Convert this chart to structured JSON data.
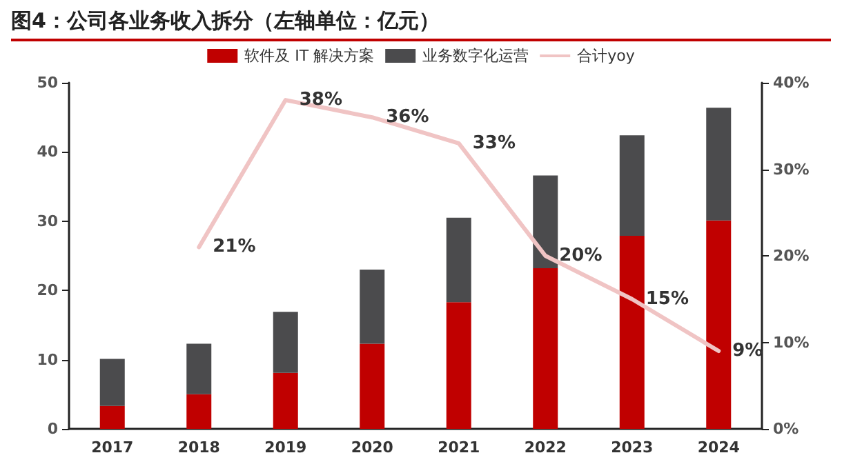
{
  "chart_data": {
    "type": "bar",
    "title": "图4：公司各业务收入拆分（左轴单位：亿元）",
    "categories": [
      "2017",
      "2018",
      "2019",
      "2020",
      "2021",
      "2022",
      "2023",
      "2024"
    ],
    "stacked": true,
    "series": [
      {
        "name": "软件及 IT 解决方案",
        "color": "#c00000",
        "values": [
          3.3,
          5.0,
          8.1,
          12.3,
          18.3,
          23.2,
          27.9,
          30.1
        ]
      },
      {
        "name": "业务数字化运营",
        "color": "#4b4b4d",
        "values": [
          6.8,
          7.3,
          8.8,
          10.7,
          12.2,
          13.4,
          14.5,
          16.3
        ]
      },
      {
        "name": "合计yoy",
        "type": "line",
        "axis": "y2",
        "color": "#f0c4c4",
        "values": [
          null,
          21,
          38,
          36,
          33,
          20,
          15,
          9
        ],
        "value_labels": [
          null,
          "21%",
          "38%",
          "36%",
          "33%",
          "20%",
          "15%",
          "9%"
        ]
      }
    ],
    "ylim": [
      0,
      50
    ],
    "yticks": [
      0,
      10,
      20,
      30,
      40,
      50
    ],
    "y2lim": [
      0,
      40
    ],
    "y2ticks": [
      {
        "value": 0,
        "label": "0%"
      },
      {
        "value": 10,
        "label": "10%"
      },
      {
        "value": 20,
        "label": "20%"
      },
      {
        "value": 30,
        "label": "30%"
      },
      {
        "value": 40,
        "label": "40%"
      }
    ],
    "grid": false,
    "legend": "top",
    "marker": "none"
  }
}
